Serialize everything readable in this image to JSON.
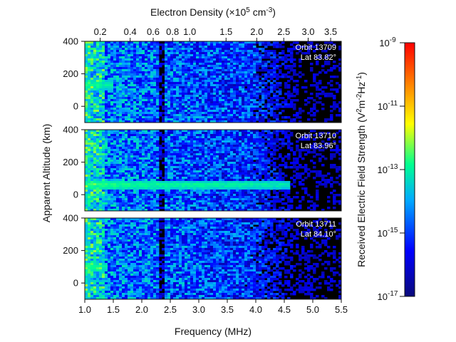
{
  "chart_data": {
    "type": "heatmap",
    "xlabel": "Frequency (MHz)",
    "x_ticks": [
      "1.0",
      "1.5",
      "2.0",
      "2.5",
      "3.0",
      "3.5",
      "4.0",
      "4.5",
      "5.0",
      "5.5"
    ],
    "x_tick_values": [
      1.0,
      1.5,
      2.0,
      2.5,
      3.0,
      3.5,
      4.0,
      4.5,
      5.0,
      5.5
    ],
    "xlim": [
      1.0,
      5.5
    ],
    "top_axis": {
      "label_prefix": "Electron Density (×10",
      "label_exp": "5",
      "label_mid": " cm",
      "label_exp2": "-3",
      "label_suffix": ")",
      "ticks": [
        "0.2",
        "0.4",
        "0.6",
        "0.8",
        "1.0",
        "1.5",
        "2.0",
        "2.5",
        "3.0",
        "3.5"
      ],
      "tick_values": [
        0.2,
        0.4,
        0.6,
        0.8,
        1.0,
        1.5,
        2.0,
        2.5,
        3.0,
        3.5
      ]
    },
    "ylabel": "Apparent Altitude (km)",
    "y_ticks": [
      "400",
      "200",
      "0"
    ],
    "y_tick_values": [
      400,
      200,
      0
    ],
    "ylim": [
      -100,
      400
    ],
    "panels": [
      {
        "orbit": "Orbit 13709",
        "lat": "Lat  83.82°",
        "echo_altitude": 130,
        "echo_fmax": 1.5
      },
      {
        "orbit": "Orbit 13710",
        "lat": "Lat  83.96°",
        "echo_altitude": 60,
        "echo_fmax": 4.6
      },
      {
        "orbit": "Orbit 13711",
        "lat": "Lat  84.10°",
        "echo_altitude": 100,
        "echo_fmax": 1.4
      }
    ],
    "colorbar": {
      "label_prefix": "Received Electric Field Strength (V",
      "label_e1": "2",
      "label_mid": "m",
      "label_e2": "-2",
      "label_mid2": "Hz",
      "label_e3": "-1",
      "label_suffix": ")",
      "ticks": [
        {
          "base": "10",
          "exp": "-9",
          "value": -9
        },
        {
          "base": "10",
          "exp": "-11",
          "value": -11
        },
        {
          "base": "10",
          "exp": "-13",
          "value": -13
        },
        {
          "base": "10",
          "exp": "-15",
          "value": -15
        },
        {
          "base": "10",
          "exp": "-17",
          "value": -17
        }
      ],
      "range": [
        -17,
        -9
      ],
      "scale": "log",
      "colormap": [
        "#0a0a7a",
        "#0000ff",
        "#00aaff",
        "#00ff90",
        "#ffff00",
        "#ff8000",
        "#ff0000"
      ]
    }
  }
}
